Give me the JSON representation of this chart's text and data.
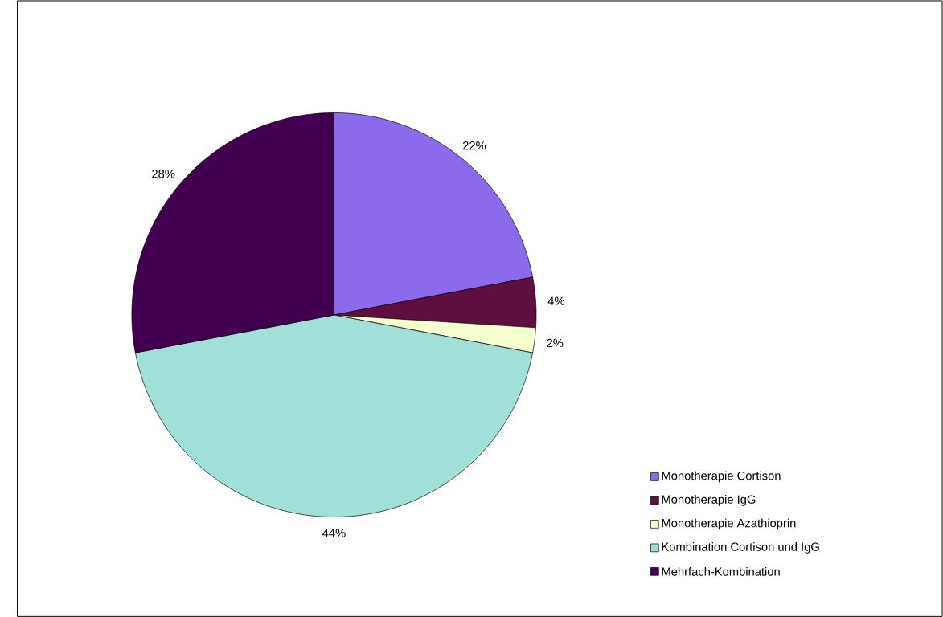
{
  "chart_data": {
    "type": "pie",
    "categories": [
      "Monotherapie Cortison",
      "Monotherapie IgG",
      "Monotherapie Azathioprin",
      "Kombination Cortison und IgG",
      "Mehrfach-Kombination"
    ],
    "values": [
      22,
      4,
      2,
      44,
      28
    ],
    "colors": [
      "#8b6beb",
      "#5f0f3f",
      "#f5ffd0",
      "#a0e0d8",
      "#420050"
    ],
    "value_labels": [
      "22%",
      "4%",
      "2%",
      "44%",
      "28%"
    ],
    "legend": "bottom right"
  }
}
